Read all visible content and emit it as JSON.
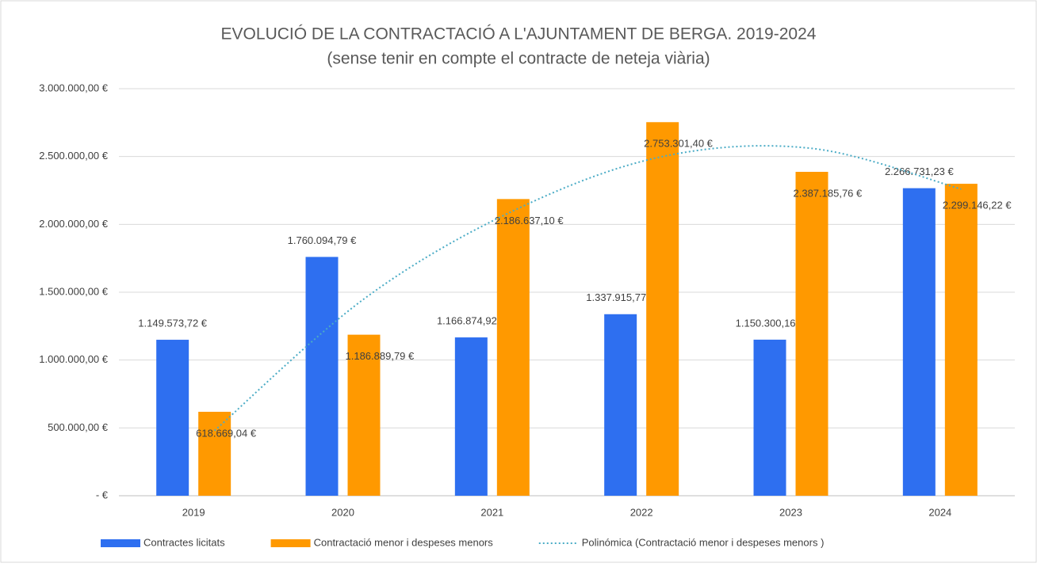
{
  "chart_data": {
    "type": "bar",
    "title": "EVOLUCIÓ DE LA CONTRACTACIÓ A L'AJUNTAMENT DE BERGA. 2019-2024",
    "subtitle": "(sense tenir en compte el contracte de neteja viària)",
    "categories": [
      "2019",
      "2020",
      "2021",
      "2022",
      "2023",
      "2024"
    ],
    "series": [
      {
        "name": "Contractes licitats",
        "color": "#2e6ff0",
        "values": [
          1149573.72,
          1760094.79,
          1166874.92,
          1337915.77,
          1150300.16,
          2266731.23
        ],
        "value_labels": [
          "1.149.573,72 €",
          "1.760.094,79 €",
          "1.166.874,92 €",
          "1.337.915,77 €",
          "1.150.300,16 €",
          "2.266.731,23 €"
        ]
      },
      {
        "name": "Contractació menor i despeses menors",
        "color": "#ff9900",
        "values": [
          618669.04,
          1186889.79,
          2186637.1,
          2753301.4,
          2387185.76,
          2299146.22
        ],
        "value_labels": [
          "618.669,04 €",
          "1.186.889,79 €",
          "2.186.637,10 €",
          "2.753.301,40 €",
          "2.387.185,76 €",
          "2.299.146,22 €"
        ]
      }
    ],
    "trendline": {
      "name": "Polinómica (Contractació menor i despeses menors )",
      "color": "#4bacc6",
      "values": [
        480000,
        1450000,
        2100000,
        2500000,
        2560000,
        2260000
      ]
    },
    "ylim": [
      0,
      3000000
    ],
    "yticks": [
      {
        "value": 0,
        "label": "-   €"
      },
      {
        "value": 500000,
        "label": "500.000,00 €"
      },
      {
        "value": 1000000,
        "label": "1.000.000,00 €"
      },
      {
        "value": 1500000,
        "label": "1.500.000,00 €"
      },
      {
        "value": 2000000,
        "label": "2.000.000,00 €"
      },
      {
        "value": 2500000,
        "label": "2.500.000,00 €"
      },
      {
        "value": 3000000,
        "label": "3.000.000,00 €"
      }
    ],
    "grid": true,
    "legend": "bottom"
  }
}
